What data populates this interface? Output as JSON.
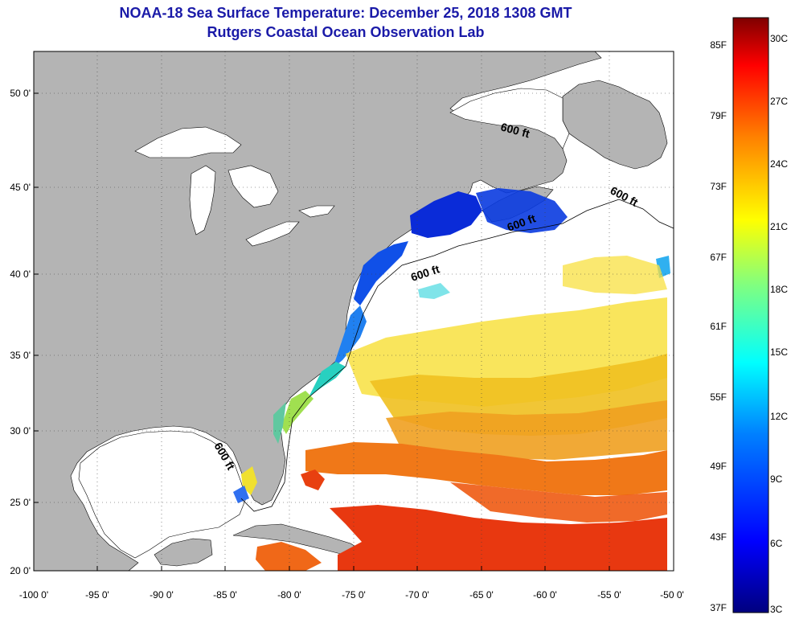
{
  "title": "NOAA-18 Sea Surface Temperature:  December 25, 2018 1308 GMT",
  "subtitle": "Rutgers Coastal Ocean Observation Lab",
  "lat_ticks": [
    "50 0'",
    "45 0'",
    "40 0'",
    "35 0'",
    "30 0'",
    "25 0'",
    "20 0'"
  ],
  "lon_ticks": [
    "-100 0'",
    "-95 0'",
    "-90 0'",
    "-85 0'",
    "-80 0'",
    "-75 0'",
    "-70 0'",
    "-65 0'",
    "-60 0'",
    "-55 0'",
    "-50 0'"
  ],
  "contour_labels": [
    "600 ft",
    "600 ft",
    "600 ft",
    "600 ft",
    "600 ft"
  ],
  "colorbar": {
    "fahrenheit": [
      "85F",
      "79F",
      "73F",
      "67F",
      "61F",
      "55F",
      "49F",
      "43F",
      "37F"
    ],
    "celsius": [
      "30C",
      "27C",
      "24C",
      "21C",
      "18C",
      "15C",
      "12C",
      "9C",
      "6C",
      "3C"
    ],
    "color_stops": [
      "#00007f",
      "#0000ff",
      "#0080ff",
      "#00ffff",
      "#80ff80",
      "#ffff00",
      "#ff8000",
      "#ff0000",
      "#7f0000"
    ]
  },
  "colors": {
    "land": "#b4b4b4",
    "ocean_nodata": "#ffffff",
    "title": "#1a1aa8"
  }
}
